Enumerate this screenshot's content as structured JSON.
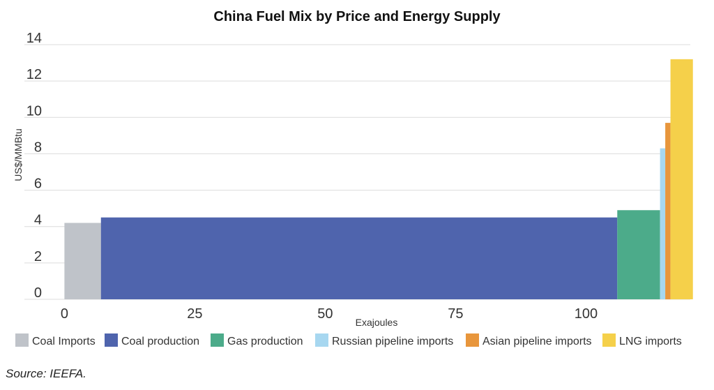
{
  "chart_data": {
    "type": "bar",
    "title": "China Fuel Mix by Price and Energy Supply",
    "xlabel": "Exajoules",
    "ylabel": "US$/MMBtu",
    "xlim": [
      -5,
      120
    ],
    "ylim": [
      0,
      14
    ],
    "xticks": [
      "0",
      "25",
      "50",
      "75",
      "100"
    ],
    "xtick_values": [
      0,
      25,
      50,
      75,
      100
    ],
    "yticks": [
      "0",
      "2",
      "4",
      "6",
      "8",
      "10",
      "12",
      "14"
    ],
    "ytick_values": [
      0,
      2,
      4,
      6,
      8,
      10,
      12,
      14
    ],
    "grid": true,
    "legend_position": "bottom",
    "series": [
      {
        "name": "Coal Imports",
        "x_start": 0,
        "x_end": 7,
        "value": 4.2,
        "color": "#bfc3c9"
      },
      {
        "name": "Coal production",
        "x_start": 7,
        "x_end": 106,
        "value": 4.5,
        "color": "#4f64ad"
      },
      {
        "name": "Gas production",
        "x_start": 106,
        "x_end": 114.2,
        "value": 4.9,
        "color": "#4cab8a"
      },
      {
        "name": "Russian pipeline imports",
        "x_start": 114.2,
        "x_end": 115.2,
        "value": 8.3,
        "color": "#a7d7f0"
      },
      {
        "name": "Asian pipeline imports",
        "x_start": 115.2,
        "x_end": 116.2,
        "value": 9.7,
        "color": "#e8963c"
      },
      {
        "name": "LNG imports",
        "x_start": 116.2,
        "x_end": 120.5,
        "value": 13.2,
        "color": "#f5d04a"
      }
    ]
  },
  "source": "Source: IEEFA."
}
